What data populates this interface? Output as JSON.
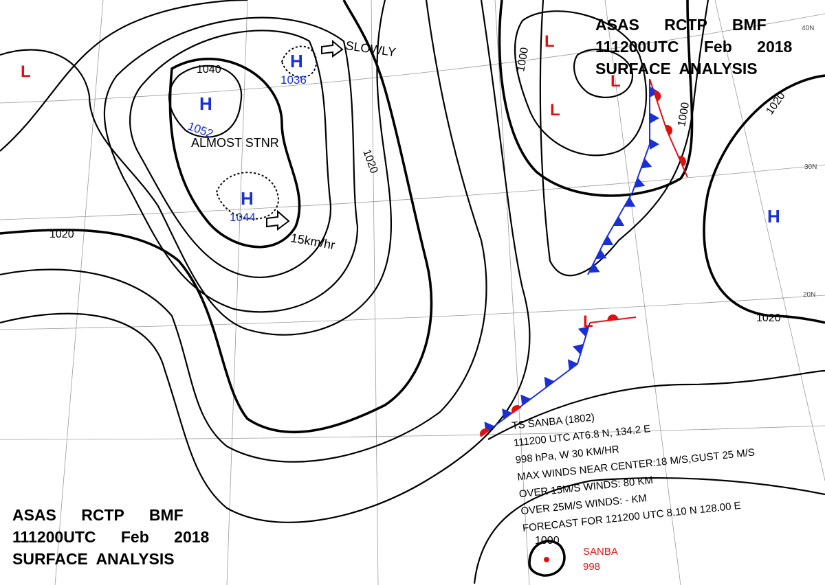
{
  "header_top": {
    "line1": "ASAS RCTP BMF",
    "line2": "111200UTC Feb 2018",
    "line3": "SURFACE ANALYSIS"
  },
  "header_bottom": {
    "line1": "ASAS RCTP BMF",
    "line2": "111200UTC Feb 2018",
    "line3": "SURFACE ANALYSIS"
  },
  "pressure_centers": [
    {
      "symbol": "H",
      "value": "1052"
    },
    {
      "symbol": "H",
      "value": "1036"
    },
    {
      "symbol": "H",
      "value": "1044"
    },
    {
      "symbol": "H"
    },
    {
      "symbol": "L"
    },
    {
      "symbol": "L"
    },
    {
      "symbol": "L"
    },
    {
      "symbol": "L"
    },
    {
      "symbol": "L"
    }
  ],
  "isobar_labels": [
    "1040",
    "1020",
    "1020",
    "1000",
    "1000",
    "1020",
    "1020",
    "1000"
  ],
  "annotations": {
    "stationary": "ALMOST STNR",
    "slowly": "SLOWLY",
    "speed": "15km/hr"
  },
  "latitude_labels": [
    "40N",
    "30N",
    "20N"
  ],
  "typhoon": {
    "lines": [
      "TS SANBA (1802)",
      "111200 UTC AT6.8 N, 134.2 E",
      "998 hPa, W 30 KM/HR",
      "MAX WINDS NEAR CENTER:18 M/S,GUST 25 M/S",
      "OVER 15M/S WINDS: 80 KM",
      "OVER 25M/S WINDS: - KM",
      "FORECAST FOR 121200 UTC 8.10 N 128.00 E"
    ],
    "name": "SANBA",
    "pressure": "998"
  }
}
